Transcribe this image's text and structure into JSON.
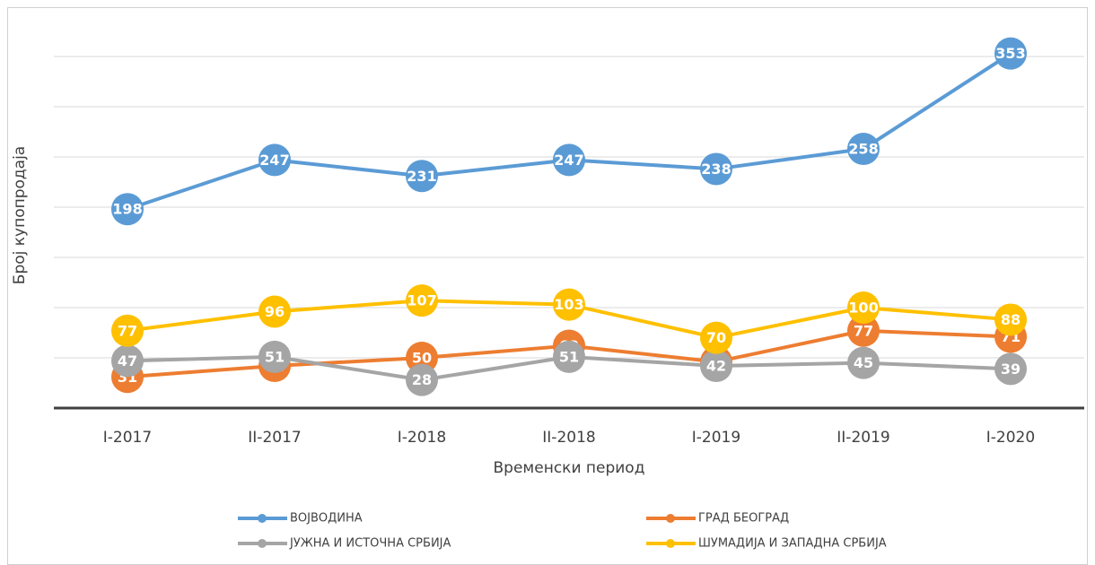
{
  "chart_data": {
    "type": "line",
    "x_label": "Временски период",
    "y_label": "Број купопродаја",
    "categories": [
      "I-2017",
      "II-2017",
      "I-2018",
      "II-2018",
      "I-2019",
      "II-2019",
      "I-2020"
    ],
    "series": [
      {
        "name": "ВОЈВОДИНА",
        "color": "#5b9bd5",
        "values": [
          198,
          247,
          231,
          247,
          238,
          258,
          353
        ]
      },
      {
        "name": "ГРАД БЕОГРАД",
        "color": "#ed7d31",
        "values": [
          31,
          42,
          50,
          62,
          46,
          77,
          71
        ]
      },
      {
        "name": "ЈУЖНА И ИСТОЧНА СРБИЈА",
        "color": "#a5a5a5",
        "values": [
          47,
          51,
          28,
          51,
          42,
          45,
          39
        ]
      },
      {
        "name": "ШУМАДИЈА И ЗАПАДНА СРБИЈА",
        "color": "#ffc000",
        "values": [
          77,
          96,
          107,
          103,
          70,
          100,
          88
        ]
      }
    ],
    "ylim": [
      0,
      350
    ],
    "yticks": [
      0,
      50,
      100,
      150,
      200,
      250,
      300,
      350
    ],
    "grid": true,
    "legend": "bottom"
  }
}
